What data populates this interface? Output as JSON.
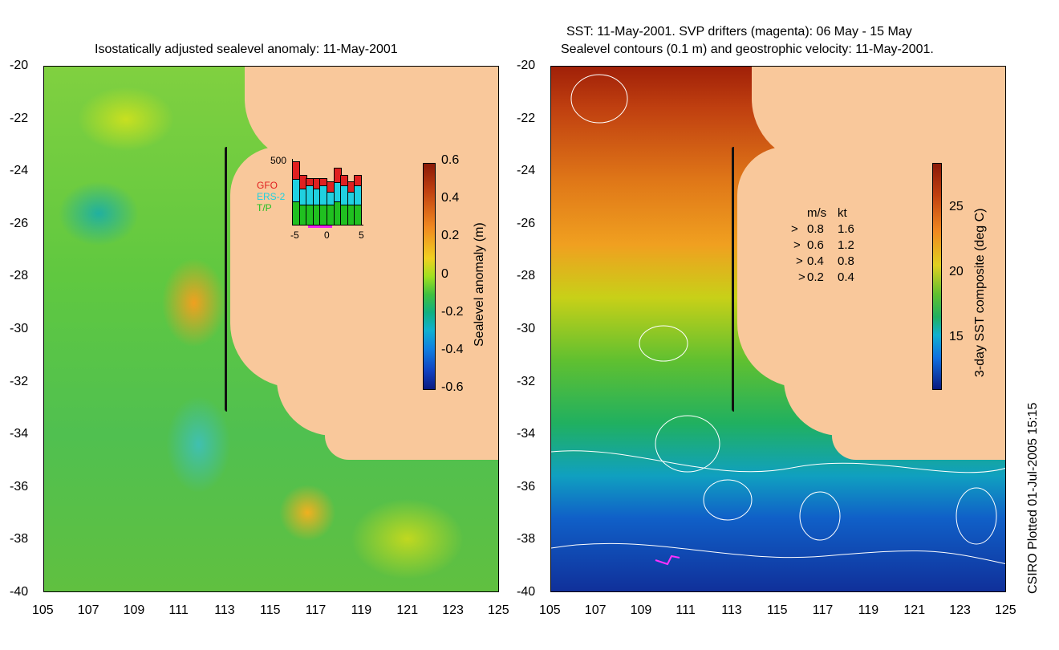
{
  "left_panel": {
    "title": "Isostatically adjusted sealevel anomaly: 11-May-2001",
    "y_ticks": [
      "-20",
      "-22",
      "-24",
      "-26",
      "-28",
      "-30",
      "-32",
      "-34",
      "-36",
      "-38",
      "-40"
    ],
    "x_ticks": [
      "105",
      "107",
      "109",
      "111",
      "113",
      "115",
      "117",
      "119",
      "121",
      "123",
      "125"
    ],
    "colorbar": {
      "label": "Sealevel anomaly (m)",
      "ticks": [
        "0.6",
        "0.4",
        "0.2",
        "0",
        "-0.2",
        "-0.4",
        "-0.6"
      ]
    },
    "inset": {
      "ymax_label": "500",
      "legend": [
        {
          "name": "GFO",
          "color": "#e02020"
        },
        {
          "name": "ERS-2",
          "color": "#20d0e0"
        },
        {
          "name": "T/P",
          "color": "#20c020"
        }
      ],
      "x_ticks": [
        "-5",
        "0",
        "5"
      ],
      "bars": [
        {
          "tp": 0.35,
          "ers": 0.35,
          "gfo": 0.25
        },
        {
          "tp": 0.3,
          "ers": 0.25,
          "gfo": 0.2
        },
        {
          "tp": 0.3,
          "ers": 0.3,
          "gfo": 0.1
        },
        {
          "tp": 0.3,
          "ers": 0.25,
          "gfo": 0.15
        },
        {
          "tp": 0.3,
          "ers": 0.3,
          "gfo": 0.1
        },
        {
          "tp": 0.3,
          "ers": 0.2,
          "gfo": 0.15
        },
        {
          "tp": 0.35,
          "ers": 0.3,
          "gfo": 0.2
        },
        {
          "tp": 0.3,
          "ers": 0.3,
          "gfo": 0.15
        },
        {
          "tp": 0.3,
          "ers": 0.2,
          "gfo": 0.15
        },
        {
          "tp": 0.3,
          "ers": 0.3,
          "gfo": 0.15
        }
      ]
    }
  },
  "right_panel": {
    "title_line1": "SST: 11-May-2001. SVP drifters (magenta): 06 May - 15 May",
    "title_line2": "Sealevel contours (0.1 m) and geostrophic velocity: 11-May-2001.",
    "y_ticks": [
      "-20",
      "-22",
      "-24",
      "-26",
      "-28",
      "-30",
      "-32",
      "-34",
      "-36",
      "-38",
      "-40"
    ],
    "x_ticks": [
      "105",
      "107",
      "109",
      "111",
      "113",
      "115",
      "117",
      "119",
      "121",
      "123",
      "125"
    ],
    "colorbar": {
      "label": "3-day SST composite (deg C)",
      "ticks": [
        "25",
        "20",
        "15"
      ]
    },
    "velocity_legend": {
      "header_ms": "m/s",
      "header_kt": "kt",
      "rows": [
        {
          "ms": "0.8",
          "kt": "1.6"
        },
        {
          "ms": "0.6",
          "kt": "1.2"
        },
        {
          "ms": "0.4",
          "kt": "0.8"
        },
        {
          "ms": "0.2",
          "kt": "0.4"
        }
      ]
    }
  },
  "footer": {
    "plotted": "CSIRO Plotted 01-Jul-2005 15:15"
  }
}
